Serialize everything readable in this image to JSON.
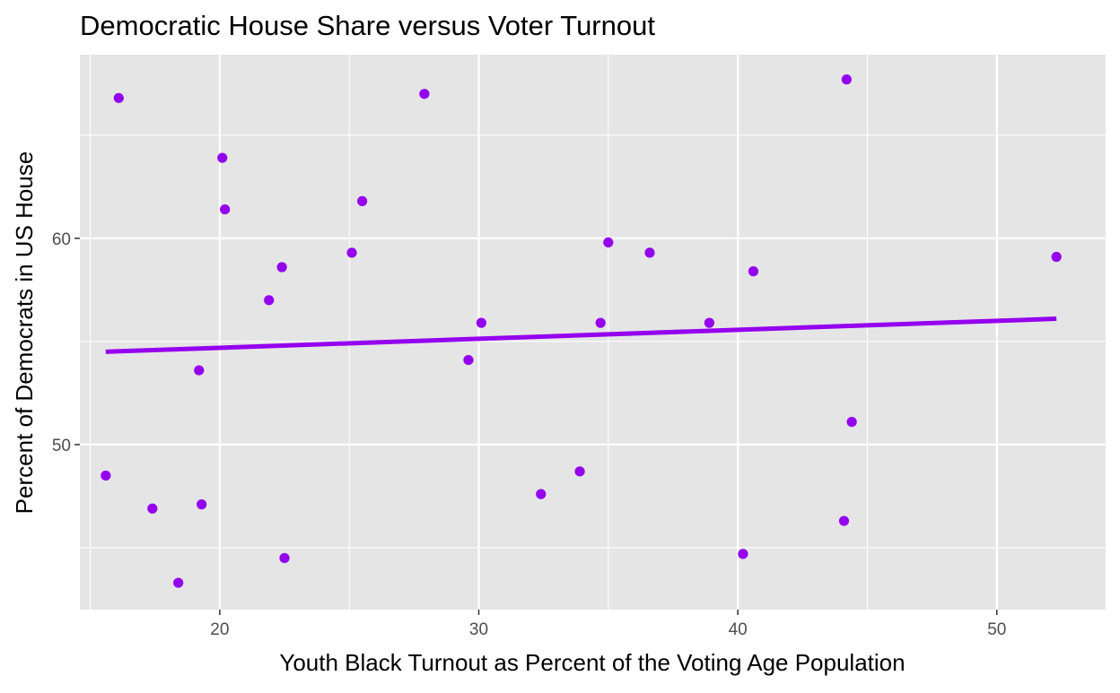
{
  "chart_data": {
    "type": "scatter",
    "title": "Democratic House Share versus Voter Turnout",
    "xlabel": "Youth Black Turnout as Percent of the Voting Age Population",
    "ylabel": "Percent of Democrats in US House",
    "xlim": [
      14.6,
      54.2
    ],
    "ylim": [
      42.0,
      68.9
    ],
    "x_ticks": [
      20,
      30,
      40,
      50
    ],
    "y_ticks": [
      50,
      60
    ],
    "x_tick_labels": [
      "20",
      "30",
      "40",
      "50"
    ],
    "y_tick_labels": [
      "50",
      "60"
    ],
    "grid": true,
    "legend": "none",
    "colors": {
      "points": "#9400ee",
      "trend": "#9400ee",
      "panel": "#e5e5e5",
      "grid": "#ffffff"
    },
    "points": [
      {
        "x": 15.6,
        "y": 48.5
      },
      {
        "x": 16.1,
        "y": 66.8
      },
      {
        "x": 17.4,
        "y": 46.9
      },
      {
        "x": 18.4,
        "y": 43.3
      },
      {
        "x": 19.2,
        "y": 53.6
      },
      {
        "x": 19.3,
        "y": 47.1
      },
      {
        "x": 20.1,
        "y": 63.9
      },
      {
        "x": 20.2,
        "y": 61.4
      },
      {
        "x": 21.9,
        "y": 57.0
      },
      {
        "x": 22.4,
        "y": 58.6
      },
      {
        "x": 22.5,
        "y": 44.5
      },
      {
        "x": 25.1,
        "y": 59.3
      },
      {
        "x": 25.5,
        "y": 61.8
      },
      {
        "x": 27.9,
        "y": 67.0
      },
      {
        "x": 29.6,
        "y": 54.1
      },
      {
        "x": 30.1,
        "y": 55.9
      },
      {
        "x": 32.4,
        "y": 47.6
      },
      {
        "x": 33.9,
        "y": 48.7
      },
      {
        "x": 34.7,
        "y": 55.9
      },
      {
        "x": 35.0,
        "y": 59.8
      },
      {
        "x": 36.6,
        "y": 59.3
      },
      {
        "x": 38.9,
        "y": 55.9
      },
      {
        "x": 40.2,
        "y": 44.7
      },
      {
        "x": 40.6,
        "y": 58.4
      },
      {
        "x": 44.1,
        "y": 46.3
      },
      {
        "x": 44.2,
        "y": 67.7
      },
      {
        "x": 44.4,
        "y": 51.1
      },
      {
        "x": 52.3,
        "y": 59.1
      }
    ],
    "trend_line": {
      "method": "linear",
      "x": [
        15.6,
        52.3
      ],
      "y": [
        54.5,
        56.1
      ]
    }
  }
}
